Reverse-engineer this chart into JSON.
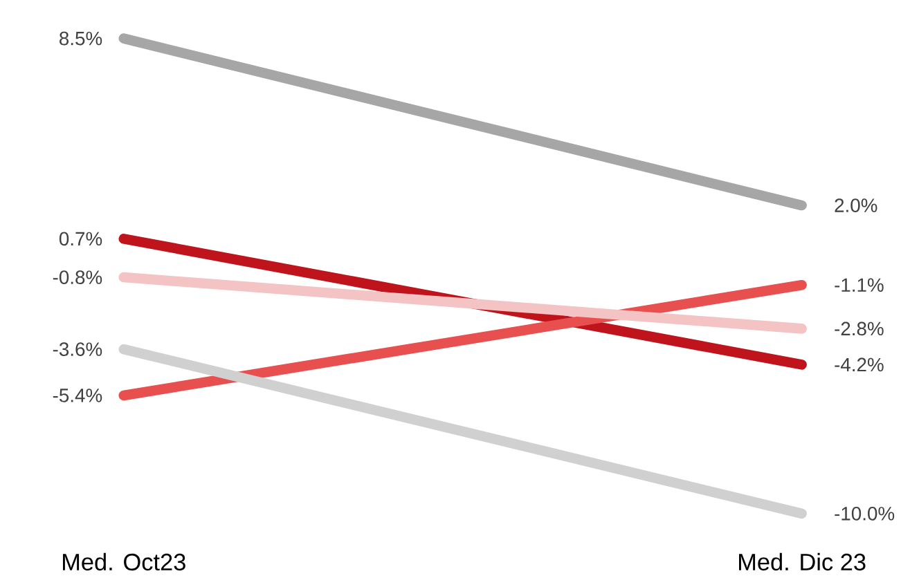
{
  "chart_data": {
    "type": "line",
    "categories": [
      "Med. Oct23",
      "Med. Dic 23"
    ],
    "series": [
      {
        "color": "#a6a6a6",
        "values": [
          8.5,
          2.0
        ],
        "value_labels": [
          "8.5%",
          "2.0%"
        ]
      },
      {
        "color": "#c0141c",
        "values": [
          0.7,
          -4.2
        ],
        "value_labels": [
          "0.7%",
          "-4.2%"
        ]
      },
      {
        "color": "#e8504f",
        "values": [
          -5.4,
          -1.1
        ],
        "value_labels": [
          "-5.4%",
          "-1.1%"
        ]
      },
      {
        "color": "#f4c3c3",
        "values": [
          -0.8,
          -2.8
        ],
        "value_labels": [
          "-0.8%",
          "-2.8%"
        ]
      },
      {
        "color": "#d0d0d0",
        "values": [
          -3.6,
          -10.0
        ],
        "value_labels": [
          "-3.6%",
          "-10.0%"
        ]
      }
    ]
  }
}
